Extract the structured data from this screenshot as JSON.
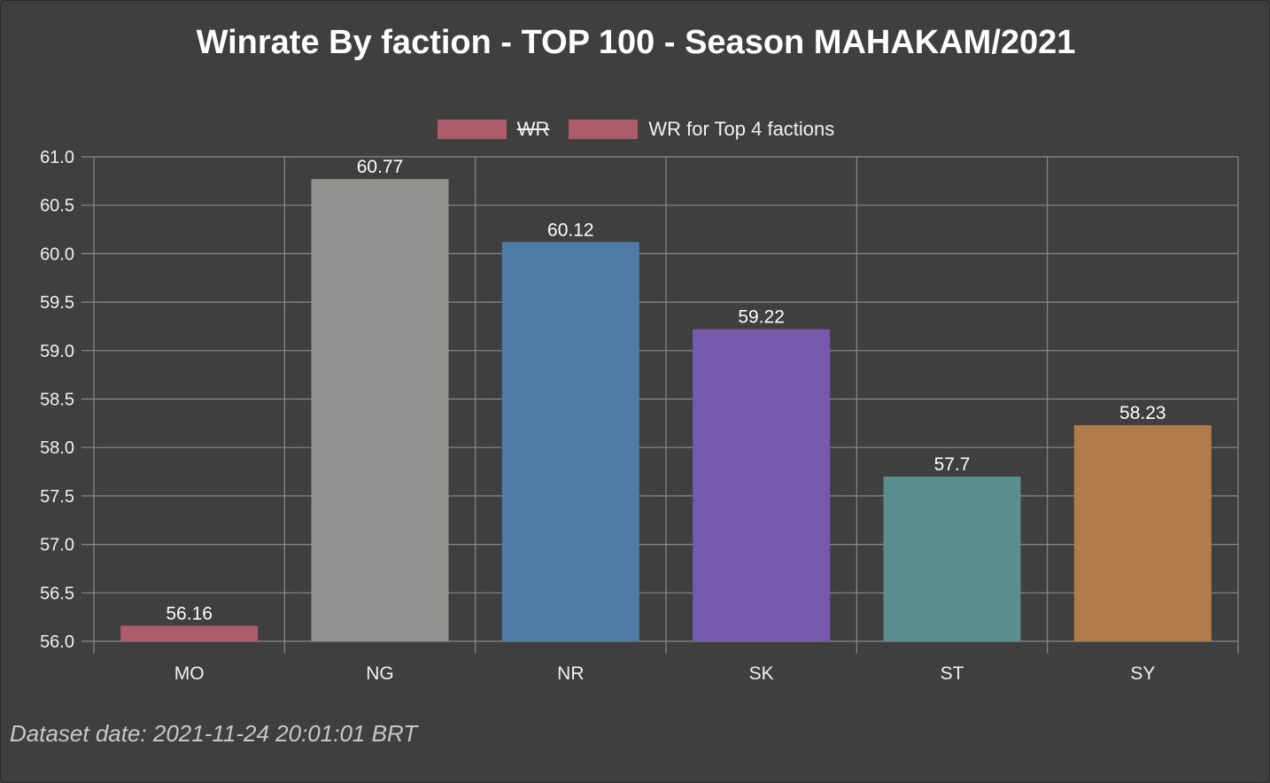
{
  "chart_data": {
    "type": "bar",
    "title": "Winrate By faction - TOP 100 - Season MAHAKAM/2021",
    "categories": [
      "MO",
      "NG",
      "NR",
      "SK",
      "ST",
      "SY"
    ],
    "series": [
      {
        "name": "WR",
        "hidden": true,
        "values": [
          56.16,
          60.77,
          60.12,
          59.22,
          57.7,
          58.23
        ]
      },
      {
        "name": "WR for Top 4 factions",
        "hidden": false,
        "values": [
          56.16,
          60.77,
          60.12,
          59.22,
          57.7,
          58.23
        ]
      }
    ],
    "data_labels": [
      "56.16",
      "60.77",
      "60.12",
      "59.22",
      "57.7",
      "58.23"
    ],
    "bar_colors": [
      "#ad5c6c",
      "#939391",
      "#4d7ba6",
      "#7659ac",
      "#5a8d8d",
      "#b17c4b"
    ],
    "ylim": [
      56.0,
      61.0
    ],
    "yticks": [
      "56.0",
      "56.5",
      "57.0",
      "57.5",
      "58.0",
      "58.5",
      "59.0",
      "59.5",
      "60.0",
      "60.5",
      "61.0"
    ],
    "xlabel": "",
    "ylabel": "",
    "grid": true,
    "legend_position": "top-center",
    "legend_color": "#ad5c6c"
  },
  "footnote": "Dataset date: 2021-11-24 20:01:01 BRT"
}
